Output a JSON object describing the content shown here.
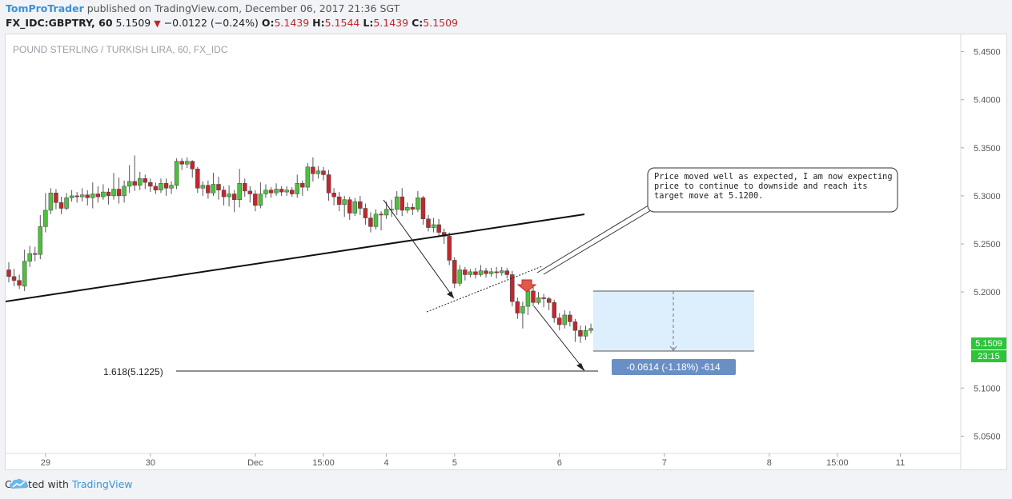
{
  "header": {
    "author": "TomProTrader",
    "published_text": "published on TradingView.com, December 06, 2017 21:36 SGT",
    "symbol": "FX_IDC:GBPTRY, 60",
    "last": "5.1509",
    "change": "−0.0122 (−0.24%)",
    "o_label": "O:",
    "o_value": "5.1439",
    "h_label": "H:",
    "h_value": "5.1544",
    "l_label": "L:",
    "l_value": "5.1439",
    "c_label": "C:",
    "c_value": "5.1509"
  },
  "chart_data": {
    "type": "candlestick",
    "title": "POUND STERLING / TURKISH LIRA, 60, FX_IDC",
    "y_ticks": [
      "5.4500",
      "5.4000",
      "5.3500",
      "5.3000",
      "5.2500",
      "5.2000",
      "5.1000",
      "5.0500"
    ],
    "ylim": [
      5.032,
      5.468
    ],
    "x_ticks": [
      {
        "label": "29",
        "bar": 7
      },
      {
        "label": "30",
        "bar": 27
      },
      {
        "label": "Dec",
        "bar": 47
      },
      {
        "label": "15:00",
        "bar": 60
      },
      {
        "label": "4",
        "bar": 72
      },
      {
        "label": "5",
        "bar": 85
      },
      {
        "label": "6",
        "bar": 105
      },
      {
        "label": "7",
        "bar": 125
      },
      {
        "label": "8",
        "bar": 145
      },
      {
        "label": "15:00",
        "bar": 158
      },
      {
        "label": "11",
        "bar": 170
      }
    ],
    "last_price": "5.1509",
    "countdown": "23:15",
    "fib_label": "1.618(5.1225)",
    "fib_level": 5.1225,
    "annotation": "Price moved well as expected, I am now expecting price to continue to downside and reach its target move at 5.1200.",
    "measure_label": "-0.0614 (-1.18%) -614",
    "colors": {
      "up": "#4fbf3f",
      "down": "#c1272d",
      "measure_fill": "#ddeefc",
      "measure_label_bg": "#6a8fc5",
      "last_price_bg": "#2ec43a"
    },
    "candles": [
      [
        5.223,
        5.216,
        5.231,
        5.21
      ],
      [
        5.216,
        5.212,
        5.224,
        5.206
      ],
      [
        5.212,
        5.207,
        5.218,
        5.203
      ],
      [
        5.206,
        5.232,
        5.244,
        5.201
      ],
      [
        5.232,
        5.24,
        5.248,
        5.226
      ],
      [
        5.24,
        5.239,
        5.247,
        5.232
      ],
      [
        5.239,
        5.268,
        5.28,
        5.234
      ],
      [
        5.268,
        5.285,
        5.303,
        5.262
      ],
      [
        5.285,
        5.303,
        5.308,
        5.281
      ],
      [
        5.303,
        5.293,
        5.307,
        5.286
      ],
      [
        5.293,
        5.287,
        5.299,
        5.281
      ],
      [
        5.287,
        5.298,
        5.303,
        5.285
      ],
      [
        5.298,
        5.3,
        5.306,
        5.294
      ],
      [
        5.3,
        5.299,
        5.304,
        5.293
      ],
      [
        5.299,
        5.301,
        5.308,
        5.294
      ],
      [
        5.301,
        5.298,
        5.306,
        5.29
      ],
      [
        5.298,
        5.302,
        5.314,
        5.287
      ],
      [
        5.302,
        5.299,
        5.31,
        5.293
      ],
      [
        5.299,
        5.304,
        5.312,
        5.296
      ],
      [
        5.304,
        5.3,
        5.308,
        5.291
      ],
      [
        5.3,
        5.307,
        5.324,
        5.296
      ],
      [
        5.307,
        5.3,
        5.319,
        5.292
      ],
      [
        5.3,
        5.31,
        5.316,
        5.293
      ],
      [
        5.31,
        5.315,
        5.332,
        5.303
      ],
      [
        5.315,
        5.311,
        5.342,
        5.305
      ],
      [
        5.311,
        5.318,
        5.325,
        5.306
      ],
      [
        5.318,
        5.314,
        5.322,
        5.307
      ],
      [
        5.314,
        5.31,
        5.318,
        5.304
      ],
      [
        5.31,
        5.306,
        5.314,
        5.302
      ],
      [
        5.306,
        5.313,
        5.318,
        5.303
      ],
      [
        5.313,
        5.308,
        5.318,
        5.3
      ],
      [
        5.308,
        5.311,
        5.315,
        5.302
      ],
      [
        5.311,
        5.336,
        5.339,
        5.307
      ],
      [
        5.336,
        5.333,
        5.339,
        5.327
      ],
      [
        5.333,
        5.336,
        5.34,
        5.329
      ],
      [
        5.336,
        5.328,
        5.337,
        5.319
      ],
      [
        5.328,
        5.308,
        5.33,
        5.303
      ],
      [
        5.308,
        5.311,
        5.315,
        5.3
      ],
      [
        5.311,
        5.303,
        5.316,
        5.297
      ],
      [
        5.303,
        5.312,
        5.324,
        5.3
      ],
      [
        5.312,
        5.306,
        5.32,
        5.296
      ],
      [
        5.306,
        5.299,
        5.31,
        5.29
      ],
      [
        5.299,
        5.302,
        5.311,
        5.289
      ],
      [
        5.302,
        5.296,
        5.306,
        5.283
      ],
      [
        5.296,
        5.313,
        5.328,
        5.288
      ],
      [
        5.313,
        5.305,
        5.318,
        5.299
      ],
      [
        5.305,
        5.302,
        5.31,
        5.293
      ],
      [
        5.302,
        5.29,
        5.306,
        5.284
      ],
      [
        5.29,
        5.302,
        5.314,
        5.287
      ],
      [
        5.302,
        5.306,
        5.312,
        5.298
      ],
      [
        5.306,
        5.303,
        5.309,
        5.298
      ],
      [
        5.303,
        5.307,
        5.313,
        5.3
      ],
      [
        5.307,
        5.304,
        5.31,
        5.3
      ],
      [
        5.304,
        5.306,
        5.31,
        5.3
      ],
      [
        5.306,
        5.302,
        5.309,
        5.299
      ],
      [
        5.302,
        5.313,
        5.322,
        5.298
      ],
      [
        5.313,
        5.309,
        5.316,
        5.3
      ],
      [
        5.309,
        5.33,
        5.334,
        5.305
      ],
      [
        5.33,
        5.323,
        5.34,
        5.315
      ],
      [
        5.323,
        5.326,
        5.331,
        5.318
      ],
      [
        5.326,
        5.322,
        5.33,
        5.316
      ],
      [
        5.322,
        5.303,
        5.327,
        5.295
      ],
      [
        5.303,
        5.299,
        5.308,
        5.29
      ],
      [
        5.299,
        5.291,
        5.304,
        5.284
      ],
      [
        5.291,
        5.296,
        5.3,
        5.278
      ],
      [
        5.296,
        5.282,
        5.299,
        5.275
      ],
      [
        5.282,
        5.294,
        5.298,
        5.279
      ],
      [
        5.294,
        5.287,
        5.3,
        5.28
      ],
      [
        5.287,
        5.277,
        5.292,
        5.27
      ],
      [
        5.277,
        5.268,
        5.283,
        5.262
      ],
      [
        5.268,
        5.281,
        5.286,
        5.265
      ],
      [
        5.281,
        5.28,
        5.284,
        5.264
      ],
      [
        5.28,
        5.286,
        5.294,
        5.276
      ],
      [
        5.286,
        5.286,
        5.296,
        5.278
      ],
      [
        5.286,
        5.299,
        5.305,
        5.28
      ],
      [
        5.299,
        5.285,
        5.308,
        5.279
      ],
      [
        5.285,
        5.288,
        5.293,
        5.282
      ],
      [
        5.288,
        5.286,
        5.292,
        5.28
      ],
      [
        5.286,
        5.298,
        5.305,
        5.283
      ],
      [
        5.298,
        5.276,
        5.3,
        5.27
      ],
      [
        5.276,
        5.267,
        5.28,
        5.263
      ],
      [
        5.267,
        5.27,
        5.277,
        5.262
      ],
      [
        5.27,
        5.262,
        5.276,
        5.257
      ],
      [
        5.262,
        5.258,
        5.266,
        5.25
      ],
      [
        5.258,
        5.233,
        5.262,
        5.228
      ],
      [
        5.233,
        5.209,
        5.236,
        5.204
      ],
      [
        5.209,
        5.223,
        5.228,
        5.206
      ],
      [
        5.223,
        5.218,
        5.226,
        5.212
      ],
      [
        5.218,
        5.221,
        5.224,
        5.215
      ],
      [
        5.221,
        5.218,
        5.225,
        5.214
      ],
      [
        5.218,
        5.222,
        5.228,
        5.216
      ],
      [
        5.222,
        5.219,
        5.225,
        5.215
      ],
      [
        5.219,
        5.221,
        5.225,
        5.216
      ],
      [
        5.221,
        5.22,
        5.226,
        5.214
      ],
      [
        5.22,
        5.222,
        5.226,
        5.217
      ],
      [
        5.222,
        5.218,
        5.225,
        5.214
      ],
      [
        5.218,
        5.19,
        5.222,
        5.185
      ],
      [
        5.19,
        5.178,
        5.194,
        5.172
      ],
      [
        5.178,
        5.185,
        5.19,
        5.162
      ],
      [
        5.185,
        5.201,
        5.204,
        5.176
      ],
      [
        5.201,
        5.189,
        5.205,
        5.185
      ],
      [
        5.189,
        5.194,
        5.2,
        5.187
      ],
      [
        5.194,
        5.193,
        5.198,
        5.184
      ],
      [
        5.193,
        5.189,
        5.195,
        5.181
      ],
      [
        5.189,
        5.173,
        5.192,
        5.168
      ],
      [
        5.173,
        5.166,
        5.178,
        5.16
      ],
      [
        5.166,
        5.176,
        5.181,
        5.162
      ],
      [
        5.176,
        5.169,
        5.18,
        5.164
      ],
      [
        5.169,
        5.16,
        5.172,
        5.148
      ],
      [
        5.16,
        5.154,
        5.165,
        5.147
      ],
      [
        5.154,
        5.16,
        5.165,
        5.15
      ],
      [
        5.16,
        5.162,
        5.167,
        5.157
      ],
      [
        5.162,
        5.158,
        5.166,
        5.154
      ],
      [
        5.158,
        5.174,
        5.178,
        5.155
      ],
      [
        5.174,
        5.168,
        5.185,
        5.164
      ],
      [
        5.168,
        5.165,
        5.172,
        5.16
      ],
      [
        5.165,
        5.158,
        5.17,
        5.152
      ],
      [
        5.158,
        5.145,
        5.163,
        5.142
      ],
      [
        5.144,
        5.151,
        5.154,
        5.144
      ]
    ]
  }
}
